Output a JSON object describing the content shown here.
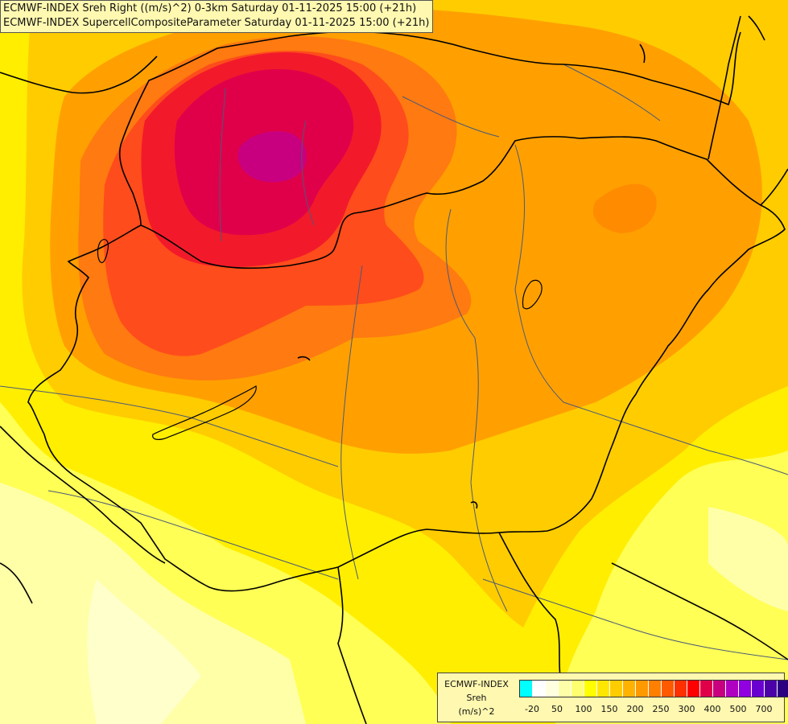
{
  "title": {
    "line1": "ECMWF-INDEX Sreh Right ((m/s)^2) 0-3km Saturday 01-11-2025 15:00 (+21h)",
    "line2": "ECMWF-INDEX SupercellCompositeParameter Saturday 01-11-2025 15:00 (+21h)"
  },
  "legend": {
    "line1": "ECMWF-INDEX",
    "line2": "Sreh",
    "line3": "(m/s)^2",
    "colors": [
      "#00ffff",
      "#ffffff",
      "#ffffe0",
      "#ffffa8",
      "#ffff70",
      "#ffff00",
      "#ffe600",
      "#ffcc00",
      "#ffb300",
      "#ff9900",
      "#ff7f00",
      "#ff5a00",
      "#ff3000",
      "#ff0000",
      "#e0004a",
      "#c8007f",
      "#b000c0",
      "#9000e0",
      "#6a00d0",
      "#4b00a8",
      "#2a0080",
      "#0a0060"
    ],
    "ticks": [
      "-20",
      "50",
      "100",
      "150",
      "200",
      "250",
      "300",
      "400",
      "500",
      "700"
    ]
  },
  "colors": {
    "pale": "#ffffa0",
    "light_yellow": "#ffff55",
    "yellow": "#ffee00",
    "gold": "#ffcc00",
    "orange": "#ffa000",
    "dark_orange": "#ff7a10",
    "red_orange": "#ff4c1c",
    "red": "#f21a2a",
    "crimson": "#e0004a",
    "magenta": "#c8007f",
    "border": "#000000",
    "river": "#4a5a78"
  }
}
